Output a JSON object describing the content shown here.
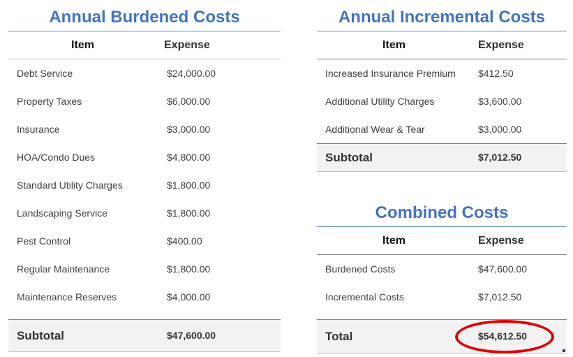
{
  "burdened": {
    "title": "Annual Burdened Costs",
    "col_item": "Item",
    "col_expense": "Expense",
    "rows": [
      {
        "item": "Debt Service",
        "expense": "$24,000.00"
      },
      {
        "item": "Property Taxes",
        "expense": "$6,000.00"
      },
      {
        "item": "Insurance",
        "expense": "$3,000.00"
      },
      {
        "item": "HOA/Condo Dues",
        "expense": "$4,800.00"
      },
      {
        "item": "Standard Utility Charges",
        "expense": "$1,800.00"
      },
      {
        "item": "Landscaping Service",
        "expense": "$1,800.00"
      },
      {
        "item": "Pest Control",
        "expense": "$400.00"
      },
      {
        "item": "Regular Maintenance",
        "expense": "$1,800.00"
      },
      {
        "item": "Maintenance Reserves",
        "expense": "$4,000.00"
      }
    ],
    "subtotal_label": "Subtotal",
    "subtotal_value": "$47,600.00"
  },
  "incremental": {
    "title": "Annual Incremental Costs",
    "col_item": "Item",
    "col_expense": "Expense",
    "rows": [
      {
        "item": "Increased Insurance Premium",
        "expense": "$412.50"
      },
      {
        "item": "Additional Utility Charges",
        "expense": "$3,600.00"
      },
      {
        "item": "Additional Wear & Tear",
        "expense": "$3,000.00"
      }
    ],
    "subtotal_label": "Subtotal",
    "subtotal_value": "$7,012.50"
  },
  "combined": {
    "title": "Combined Costs",
    "col_item": "Item",
    "col_expense": "Expense",
    "rows": [
      {
        "item": "Burdened Costs",
        "expense": "$47,600.00"
      },
      {
        "item": "Incremental Costs",
        "expense": "$7,012.50"
      }
    ],
    "total_label": "Total",
    "total_value": "$54,612.50"
  },
  "colors": {
    "title": "#4472c4",
    "highlight": "#e00000",
    "total_background": "#f2f2f2"
  }
}
